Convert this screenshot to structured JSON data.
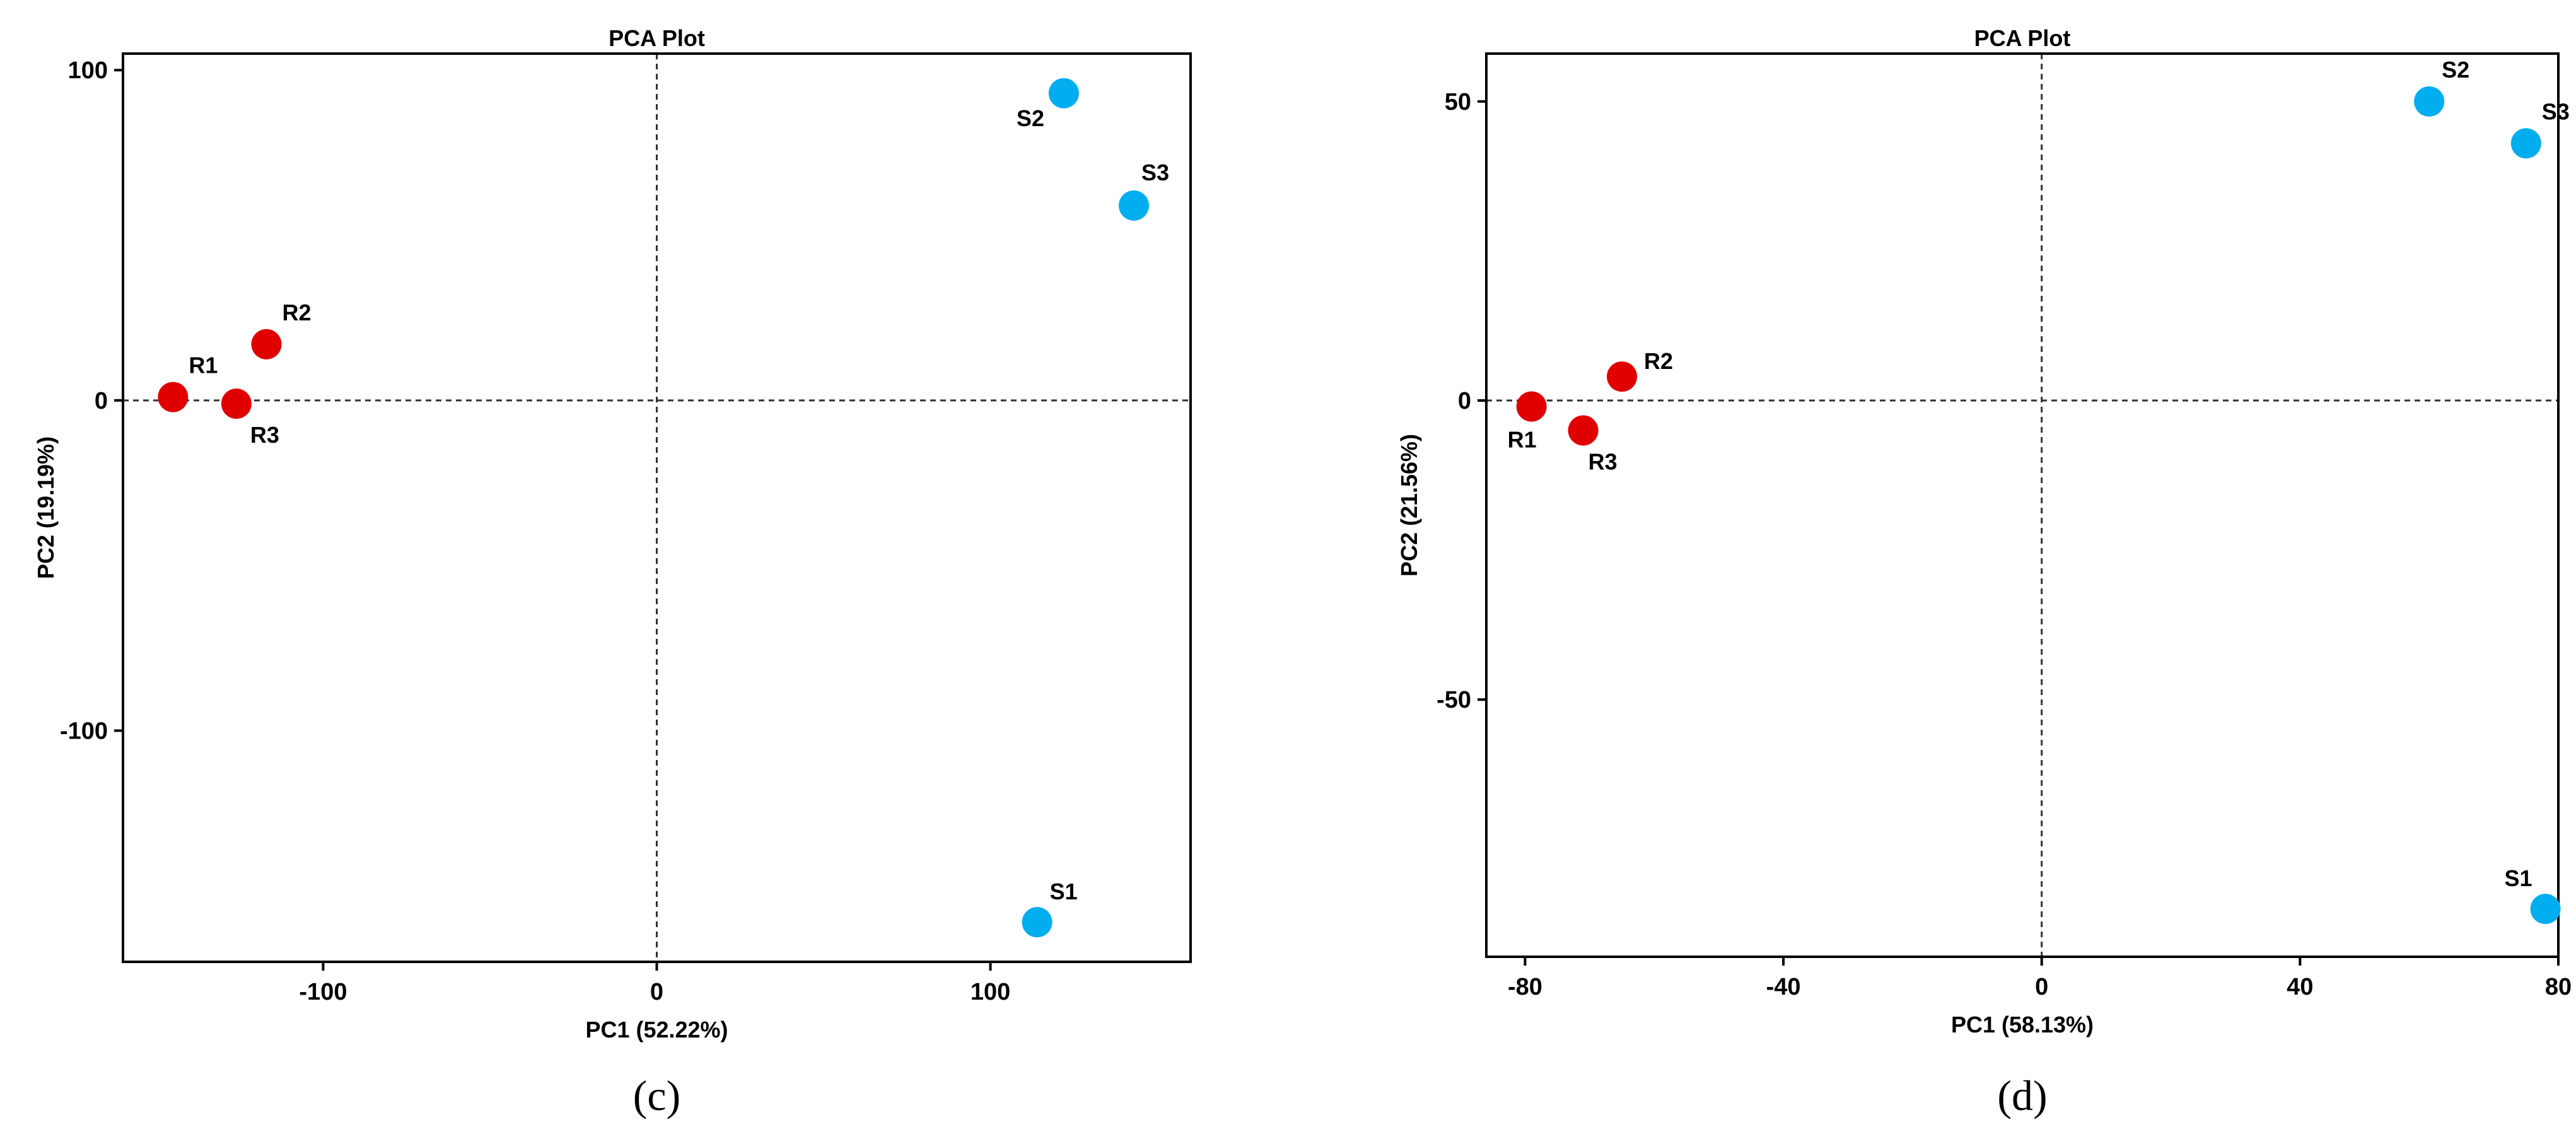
{
  "chart_data": [
    {
      "type": "scatter",
      "title": "PCA Plot",
      "xlabel": "PC1 (52.22%)",
      "ylabel": "PC2 (19.19%)",
      "caption": "(c)",
      "xlim": [
        -160,
        160
      ],
      "ylim": [
        -170,
        105
      ],
      "xticks": [
        -100,
        0,
        100
      ],
      "xtick_labels": [
        "-100",
        "0",
        "100"
      ],
      "yticks": [
        -100,
        0,
        100
      ],
      "ytick_labels": [
        "-100",
        "0",
        "100"
      ],
      "reference_lines": {
        "x": 0,
        "y": 0
      },
      "grid": false,
      "legend": "none",
      "series": [
        {
          "color": "#e00000",
          "points": [
            {
              "label": "R1",
              "x": -145,
              "y": 1
            },
            {
              "label": "R2",
              "x": -117,
              "y": 17
            },
            {
              "label": "R3",
              "x": -126,
              "y": -1
            }
          ]
        },
        {
          "color": "#00aeef",
          "points": [
            {
              "label": "S1",
              "x": 114,
              "y": -158
            },
            {
              "label": "S2",
              "x": 122,
              "y": 93
            },
            {
              "label": "S3",
              "x": 143,
              "y": 59
            }
          ]
        }
      ]
    },
    {
      "type": "scatter",
      "title": "PCA Plot",
      "xlabel": "PC1 (58.13%)",
      "ylabel": "PC2 (21.56%)",
      "caption": "(d)",
      "xlim": [
        -86,
        80
      ],
      "ylim": [
        -93,
        58
      ],
      "xticks": [
        -80,
        -40,
        0,
        40,
        80
      ],
      "xtick_labels": [
        "-80",
        "-40",
        "0",
        "40",
        "80"
      ],
      "yticks": [
        -50,
        0,
        50
      ],
      "ytick_labels": [
        "-50",
        "0",
        "50"
      ],
      "reference_lines": {
        "x": 0,
        "y": 0
      },
      "grid": false,
      "legend": "none",
      "series": [
        {
          "color": "#e00000",
          "points": [
            {
              "label": "R1",
              "x": -79,
              "y": -1
            },
            {
              "label": "R2",
              "x": -65,
              "y": 4
            },
            {
              "label": "R3",
              "x": -71,
              "y": -5
            }
          ]
        },
        {
          "color": "#00aeef",
          "points": [
            {
              "label": "S1",
              "x": 78,
              "y": -85
            },
            {
              "label": "S2",
              "x": 60,
              "y": 50
            },
            {
              "label": "S3",
              "x": 75,
              "y": 43
            }
          ]
        }
      ]
    }
  ]
}
